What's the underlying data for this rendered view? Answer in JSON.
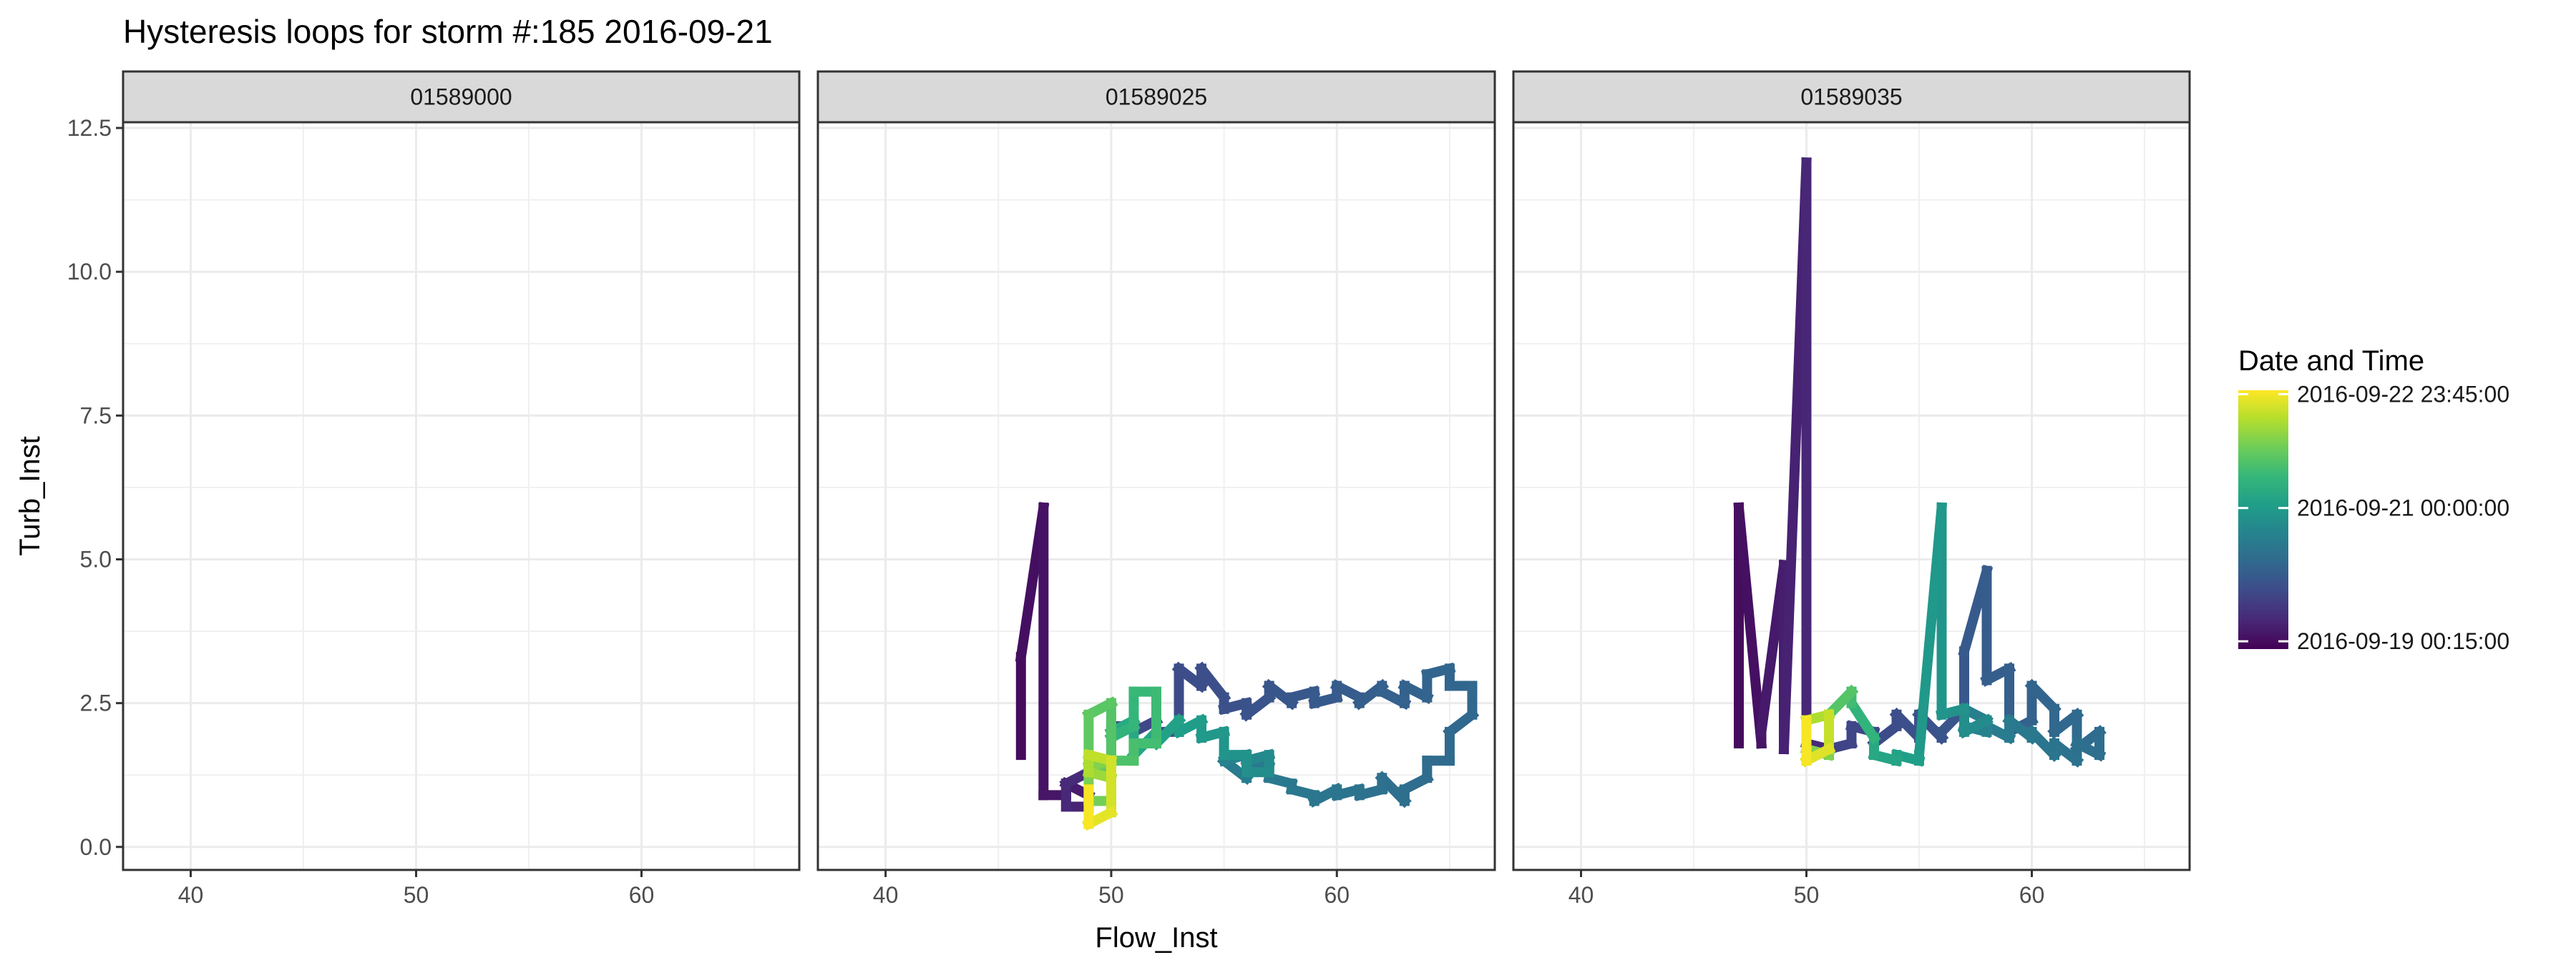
{
  "chart_data": {
    "type": "line",
    "title": "Hysteresis loops for storm #:185   2016-09-21",
    "xlabel": "Flow_Inst",
    "ylabel": "Turb_Inst",
    "xlim": [
      37,
      67
    ],
    "ylim": [
      -0.4,
      12.6
    ],
    "x_ticks": [
      40,
      50,
      60
    ],
    "x_tick_labels": [
      "40",
      "50",
      "60"
    ],
    "y_ticks": [
      0,
      2.5,
      5,
      7.5,
      10,
      12.5
    ],
    "y_tick_labels": [
      "0.0",
      "2.5",
      "5.0",
      "7.5",
      "10.0",
      "12.5"
    ],
    "grid": true,
    "legend": {
      "title": "Date and Time",
      "position": "right",
      "labels": [
        "2016-09-22 23:45:00",
        "2016-09-21 00:00:00",
        "2016-09-19 00:15:00"
      ],
      "label_fraction": [
        0.985,
        0.545,
        0.03
      ]
    },
    "colormap": [
      "#440154",
      "#482878",
      "#3E4A89",
      "#31688E",
      "#26828E",
      "#1F9E89",
      "#35B779",
      "#6DCD59",
      "#B4DE2C",
      "#FDE725"
    ],
    "panels": [
      {
        "label": "01589000",
        "series": []
      },
      {
        "label": "01589025",
        "series": [
          {
            "x": [
              46,
              46,
              47,
              47,
              48,
              48,
              49,
              49,
              48,
              48,
              49
            ],
            "y": [
              1.6,
              3.3,
              5.9,
              0.9,
              0.9,
              1.1,
              0.9,
              0.7,
              0.7,
              1.1,
              1.3
            ],
            "t0": 0.03,
            "t1": 0.12
          },
          {
            "x": [
              49,
              50,
              50,
              51,
              51,
              52,
              52,
              53,
              53,
              54,
              54,
              55,
              55,
              56,
              56,
              57,
              57,
              58,
              58,
              59,
              59,
              60,
              60,
              61,
              61,
              62,
              62,
              63,
              63,
              64,
              64,
              65,
              65,
              66,
              66,
              65,
              65,
              64,
              64,
              63,
              63,
              62,
              62,
              61,
              61,
              60,
              60,
              59,
              59,
              58,
              58,
              57,
              57,
              56,
              56,
              55
            ],
            "y": [
              1.3,
              1.5,
              2.1,
              2.1,
              2.0,
              2.2,
              2.0,
              2.0,
              3.1,
              2.8,
              3.1,
              2.6,
              2.4,
              2.5,
              2.3,
              2.6,
              2.8,
              2.5,
              2.6,
              2.7,
              2.5,
              2.6,
              2.8,
              2.6,
              2.5,
              2.8,
              2.7,
              2.5,
              2.8,
              2.6,
              3.0,
              3.1,
              2.8,
              2.8,
              2.3,
              2.0,
              1.5,
              1.5,
              1.2,
              1.0,
              0.8,
              1.2,
              1.0,
              0.9,
              1.0,
              0.9,
              1.0,
              0.8,
              0.9,
              1.0,
              1.1,
              1.2,
              1.4,
              1.5,
              1.2,
              1.5
            ],
            "t0": 0.2,
            "t1": 0.42
          },
          {
            "x": [
              55,
              56,
              56,
              57,
              57,
              56,
              56,
              55,
              55,
              54,
              54,
              53,
              53,
              52,
              52,
              51,
              51,
              50,
              50
            ],
            "y": [
              1.5,
              1.6,
              1.5,
              1.6,
              1.3,
              1.3,
              1.6,
              1.6,
              2.0,
              1.9,
              2.2,
              2.0,
              2.2,
              1.8,
              2.0,
              1.6,
              2.2,
              2.0,
              1.9
            ],
            "t0": 0.45,
            "t1": 0.62
          },
          {
            "x": [
              50,
              51,
              51,
              52,
              52,
              51,
              51,
              50,
              50,
              49,
              49,
              50,
              50,
              49,
              49,
              50,
              50
            ],
            "y": [
              1.9,
              2.1,
              2.7,
              2.7,
              1.8,
              1.8,
              1.5,
              1.5,
              2.5,
              2.3,
              1.4,
              1.4,
              0.8,
              0.8,
              1.4,
              1.5,
              1.2
            ],
            "t0": 0.65,
            "t1": 0.82
          },
          {
            "x": [
              50,
              49,
              49,
              50,
              50,
              49,
              49
            ],
            "y": [
              1.2,
              1.3,
              1.6,
              1.5,
              0.6,
              0.4,
              1.0
            ],
            "t0": 0.85,
            "t1": 0.99
          }
        ]
      },
      {
        "label": "01589035",
        "series": [
          {
            "x": [
              47,
              47,
              48,
              48,
              49,
              49,
              50,
              50,
              51
            ],
            "y": [
              1.8,
              5.9,
              1.8,
              2.0,
              4.9,
              1.7,
              11.9,
              1.8,
              1.7
            ],
            "t0": 0.03,
            "t1": 0.12
          },
          {
            "x": [
              51,
              52,
              52,
              53,
              53,
              54,
              54,
              55,
              55,
              56,
              56,
              57,
              57,
              58,
              58,
              59,
              59,
              60,
              60,
              61,
              61,
              62,
              62,
              63,
              63,
              62,
              62,
              61,
              61,
              60,
              60,
              59,
              59,
              58,
              58,
              57,
              57,
              58,
              58
            ],
            "y": [
              1.7,
              1.8,
              2.1,
              2.0,
              1.8,
              2.1,
              2.3,
              1.9,
              2.3,
              1.9,
              2.0,
              2.4,
              3.4,
              4.8,
              2.9,
              3.1,
              2.0,
              2.2,
              2.8,
              2.4,
              2.0,
              2.3,
              1.7,
              2.0,
              1.6,
              1.8,
              1.5,
              1.8,
              1.6,
              2.0,
              1.9,
              2.2,
              1.9,
              2.1,
              2.2,
              2.4,
              2.1,
              2.0,
              2.2
            ],
            "t0": 0.2,
            "t1": 0.45
          },
          {
            "x": [
              58,
              57,
              57,
              56,
              56,
              55,
              55,
              54,
              54,
              53,
              53
            ],
            "y": [
              2.2,
              2.0,
              2.4,
              2.3,
              5.9,
              1.6,
              1.5,
              1.6,
              1.5,
              1.6,
              1.9
            ],
            "t0": 0.48,
            "t1": 0.6
          },
          {
            "x": [
              53,
              52,
              52,
              51,
              51,
              50,
              50
            ],
            "y": [
              1.9,
              2.5,
              2.7,
              2.3,
              1.6,
              1.7,
              2.2
            ],
            "t0": 0.65,
            "t1": 0.85
          },
          {
            "x": [
              50,
              51,
              51,
              50,
              50
            ],
            "y": [
              2.2,
              2.3,
              1.7,
              1.5,
              2.2
            ],
            "t0": 0.88,
            "t1": 0.99
          }
        ]
      }
    ]
  }
}
